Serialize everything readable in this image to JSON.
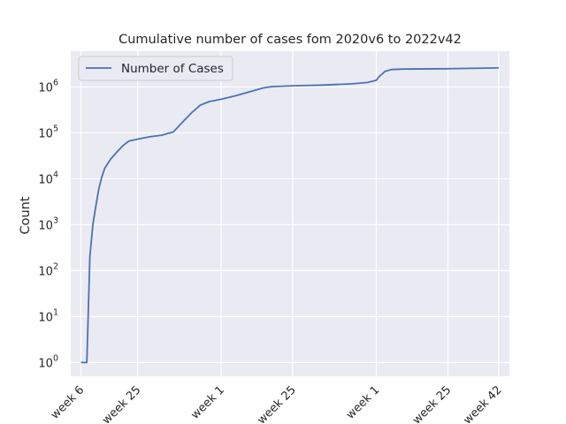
{
  "chart_data": {
    "type": "line",
    "title": "Cumulative number of cases fom 2020v6 to 2022v42",
    "xlabel": "",
    "ylabel": "Count",
    "yscale": "log",
    "ylim": [
      0.5,
      6000000
    ],
    "y_ticks": [
      1,
      10,
      100,
      1000,
      10000,
      100000,
      1000000
    ],
    "y_tick_exponents": [
      "0",
      "1",
      "2",
      "3",
      "4",
      "5",
      "6"
    ],
    "grid": true,
    "legend_position": "upper left",
    "x_ticks": [
      {
        "year": 2020,
        "week": 6,
        "label": "week 6"
      },
      {
        "year": 2020,
        "week": 25,
        "label": "week 25"
      },
      {
        "year": 2021,
        "week": 1,
        "label": "week 1"
      },
      {
        "year": 2021,
        "week": 25,
        "label": "week 25"
      },
      {
        "year": 2022,
        "week": 1,
        "label": "week 1"
      },
      {
        "year": 2022,
        "week": 25,
        "label": "week 25"
      },
      {
        "year": 2022,
        "week": 42,
        "label": "week 42"
      }
    ],
    "series": [
      {
        "name": "Number of Cases",
        "color": "#4c72b0",
        "points": [
          {
            "year": 2020,
            "week": 6,
            "y": 1
          },
          {
            "year": 2020,
            "week": 8,
            "y": 1
          },
          {
            "year": 2020,
            "week": 9,
            "y": 200
          },
          {
            "year": 2020,
            "week": 10,
            "y": 1000
          },
          {
            "year": 2020,
            "week": 11,
            "y": 2500
          },
          {
            "year": 2020,
            "week": 12,
            "y": 6000
          },
          {
            "year": 2020,
            "week": 13,
            "y": 11000
          },
          {
            "year": 2020,
            "week": 14,
            "y": 17000
          },
          {
            "year": 2020,
            "week": 16,
            "y": 27000
          },
          {
            "year": 2020,
            "week": 18,
            "y": 38000
          },
          {
            "year": 2020,
            "week": 20,
            "y": 52000
          },
          {
            "year": 2020,
            "week": 22,
            "y": 66000
          },
          {
            "year": 2020,
            "week": 25,
            "y": 73000
          },
          {
            "year": 2020,
            "week": 29,
            "y": 82000
          },
          {
            "year": 2020,
            "week": 33,
            "y": 89000
          },
          {
            "year": 2020,
            "week": 37,
            "y": 105000
          },
          {
            "year": 2020,
            "week": 40,
            "y": 170000
          },
          {
            "year": 2020,
            "week": 43,
            "y": 270000
          },
          {
            "year": 2020,
            "week": 46,
            "y": 400000
          },
          {
            "year": 2020,
            "week": 49,
            "y": 480000
          },
          {
            "year": 2021,
            "week": 1,
            "y": 540000
          },
          {
            "year": 2021,
            "week": 6,
            "y": 650000
          },
          {
            "year": 2021,
            "week": 11,
            "y": 800000
          },
          {
            "year": 2021,
            "week": 15,
            "y": 950000
          },
          {
            "year": 2021,
            "week": 18,
            "y": 1020000
          },
          {
            "year": 2021,
            "week": 25,
            "y": 1060000
          },
          {
            "year": 2021,
            "week": 35,
            "y": 1100000
          },
          {
            "year": 2021,
            "week": 45,
            "y": 1170000
          },
          {
            "year": 2021,
            "week": 50,
            "y": 1250000
          },
          {
            "year": 2022,
            "week": 1,
            "y": 1400000
          },
          {
            "year": 2022,
            "week": 2,
            "y": 1700000
          },
          {
            "year": 2022,
            "week": 4,
            "y": 2200000
          },
          {
            "year": 2022,
            "week": 6,
            "y": 2400000
          },
          {
            "year": 2022,
            "week": 10,
            "y": 2450000
          },
          {
            "year": 2022,
            "week": 25,
            "y": 2500000
          },
          {
            "year": 2022,
            "week": 42,
            "y": 2600000
          }
        ]
      }
    ]
  }
}
